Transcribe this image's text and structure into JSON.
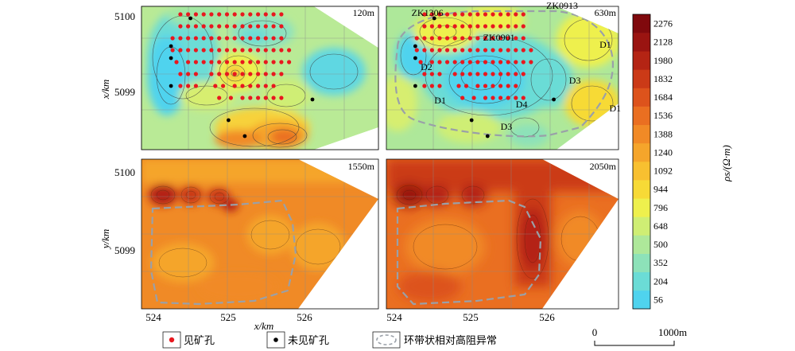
{
  "chart_data": {
    "type": "heatmap",
    "panels": [
      {
        "depth_label": "120m",
        "holes_ore": [
          [
            524.35,
            5100.05
          ],
          [
            524.45,
            5100.05
          ],
          [
            524.55,
            5100.05
          ],
          [
            524.65,
            5100.05
          ],
          [
            524.75,
            5100.05
          ],
          [
            524.85,
            5100.05
          ],
          [
            524.95,
            5100.05
          ],
          [
            525.05,
            5100.05
          ],
          [
            525.15,
            5100.05
          ],
          [
            525.25,
            5100.05
          ],
          [
            525.35,
            5100.05
          ],
          [
            525.45,
            5100.05
          ],
          [
            525.55,
            5100.05
          ],
          [
            525.65,
            5100.05
          ],
          [
            524.35,
            5099.9
          ],
          [
            524.45,
            5099.9
          ],
          [
            524.55,
            5099.9
          ],
          [
            524.65,
            5099.9
          ],
          [
            524.75,
            5099.9
          ],
          [
            524.85,
            5099.9
          ],
          [
            524.95,
            5099.9
          ],
          [
            525.05,
            5099.9
          ],
          [
            525.15,
            5099.9
          ],
          [
            525.25,
            5099.9
          ],
          [
            525.35,
            5099.9
          ],
          [
            525.45,
            5099.9
          ],
          [
            525.55,
            5099.9
          ],
          [
            525.65,
            5099.9
          ],
          [
            524.25,
            5099.75
          ],
          [
            524.35,
            5099.75
          ],
          [
            524.45,
            5099.75
          ],
          [
            524.55,
            5099.75
          ],
          [
            524.65,
            5099.75
          ],
          [
            524.75,
            5099.75
          ],
          [
            524.85,
            5099.75
          ],
          [
            524.95,
            5099.75
          ],
          [
            525.05,
            5099.75
          ],
          [
            525.15,
            5099.75
          ],
          [
            525.25,
            5099.75
          ],
          [
            525.35,
            5099.75
          ],
          [
            525.45,
            5099.75
          ],
          [
            525.55,
            5099.75
          ],
          [
            525.65,
            5099.75
          ],
          [
            524.25,
            5099.6
          ],
          [
            524.35,
            5099.6
          ],
          [
            524.45,
            5099.6
          ],
          [
            524.55,
            5099.6
          ],
          [
            524.65,
            5099.6
          ],
          [
            524.75,
            5099.6
          ],
          [
            524.85,
            5099.6
          ],
          [
            524.95,
            5099.6
          ],
          [
            525.05,
            5099.6
          ],
          [
            525.15,
            5099.6
          ],
          [
            525.25,
            5099.6
          ],
          [
            525.35,
            5099.6
          ],
          [
            525.45,
            5099.6
          ],
          [
            525.55,
            5099.6
          ],
          [
            525.65,
            5099.6
          ],
          [
            525.75,
            5099.6
          ],
          [
            524.3,
            5099.45
          ],
          [
            524.45,
            5099.45
          ],
          [
            524.55,
            5099.45
          ],
          [
            524.65,
            5099.45
          ],
          [
            524.75,
            5099.45
          ],
          [
            524.85,
            5099.45
          ],
          [
            524.95,
            5099.45
          ],
          [
            525.05,
            5099.45
          ],
          [
            525.15,
            5099.45
          ],
          [
            525.25,
            5099.45
          ],
          [
            525.35,
            5099.45
          ],
          [
            525.45,
            5099.45
          ],
          [
            525.55,
            5099.45
          ],
          [
            525.65,
            5099.45
          ],
          [
            525.75,
            5099.45
          ],
          [
            524.35,
            5099.3
          ],
          [
            524.45,
            5099.3
          ],
          [
            524.55,
            5099.3
          ],
          [
            524.75,
            5099.3
          ],
          [
            524.85,
            5099.3
          ],
          [
            524.95,
            5099.3
          ],
          [
            525.05,
            5099.3
          ],
          [
            525.15,
            5099.3
          ],
          [
            525.25,
            5099.3
          ],
          [
            525.35,
            5099.3
          ],
          [
            525.45,
            5099.3
          ],
          [
            525.55,
            5099.3
          ],
          [
            525.65,
            5099.3
          ],
          [
            524.35,
            5099.15
          ],
          [
            524.45,
            5099.15
          ],
          [
            524.55,
            5099.15
          ],
          [
            524.8,
            5099.15
          ],
          [
            524.9,
            5099.15
          ],
          [
            525.05,
            5099.15
          ],
          [
            525.15,
            5099.15
          ],
          [
            525.25,
            5099.15
          ],
          [
            525.35,
            5099.15
          ],
          [
            525.45,
            5099.15
          ],
          [
            525.55,
            5099.15
          ],
          [
            524.85,
            5099.0
          ],
          [
            525.0,
            5099.0
          ],
          [
            525.15,
            5099.0
          ],
          [
            525.25,
            5099.0
          ],
          [
            525.35,
            5099.0
          ],
          [
            525.45,
            5099.0
          ],
          [
            525.55,
            5099.0
          ],
          [
            525.65,
            5099.0
          ]
        ],
        "holes_barren": [
          [
            524.48,
            5100.0
          ],
          [
            524.23,
            5099.65
          ],
          [
            524.23,
            5099.5
          ],
          [
            524.23,
            5099.15
          ],
          [
            524.97,
            5098.72
          ],
          [
            525.18,
            5098.52
          ],
          [
            526.05,
            5098.98
          ]
        ],
        "annotations": []
      },
      {
        "depth_label": "630m",
        "holes_ore": [
          [
            524.35,
            5100.05
          ],
          [
            524.45,
            5100.05
          ],
          [
            524.55,
            5100.05
          ],
          [
            524.65,
            5100.05
          ],
          [
            524.75,
            5100.05
          ],
          [
            524.85,
            5100.05
          ],
          [
            524.95,
            5100.05
          ],
          [
            525.05,
            5100.05
          ],
          [
            525.15,
            5100.05
          ],
          [
            525.25,
            5100.05
          ],
          [
            525.35,
            5100.05
          ],
          [
            525.45,
            5100.05
          ],
          [
            525.55,
            5100.05
          ],
          [
            525.65,
            5100.05
          ],
          [
            524.35,
            5099.9
          ],
          [
            524.45,
            5099.9
          ],
          [
            524.55,
            5099.9
          ],
          [
            524.65,
            5099.9
          ],
          [
            524.75,
            5099.9
          ],
          [
            524.85,
            5099.9
          ],
          [
            524.95,
            5099.9
          ],
          [
            525.05,
            5099.9
          ],
          [
            525.15,
            5099.9
          ],
          [
            525.25,
            5099.9
          ],
          [
            525.35,
            5099.9
          ],
          [
            525.45,
            5099.9
          ],
          [
            525.55,
            5099.9
          ],
          [
            525.65,
            5099.9
          ],
          [
            524.25,
            5099.75
          ],
          [
            524.35,
            5099.75
          ],
          [
            524.45,
            5099.75
          ],
          [
            524.55,
            5099.75
          ],
          [
            524.65,
            5099.75
          ],
          [
            524.75,
            5099.75
          ],
          [
            524.85,
            5099.75
          ],
          [
            524.95,
            5099.75
          ],
          [
            525.05,
            5099.75
          ],
          [
            525.15,
            5099.75
          ],
          [
            525.25,
            5099.75
          ],
          [
            525.35,
            5099.75
          ],
          [
            525.45,
            5099.75
          ],
          [
            525.55,
            5099.75
          ],
          [
            525.65,
            5099.75
          ],
          [
            524.25,
            5099.6
          ],
          [
            524.35,
            5099.6
          ],
          [
            524.45,
            5099.6
          ],
          [
            524.55,
            5099.6
          ],
          [
            524.65,
            5099.6
          ],
          [
            524.75,
            5099.6
          ],
          [
            524.85,
            5099.6
          ],
          [
            524.95,
            5099.6
          ],
          [
            525.05,
            5099.6
          ],
          [
            525.15,
            5099.6
          ],
          [
            525.25,
            5099.6
          ],
          [
            525.35,
            5099.6
          ],
          [
            525.45,
            5099.6
          ],
          [
            525.55,
            5099.6
          ],
          [
            525.65,
            5099.6
          ],
          [
            525.75,
            5099.6
          ],
          [
            524.3,
            5099.45
          ],
          [
            524.45,
            5099.45
          ],
          [
            524.55,
            5099.45
          ],
          [
            524.65,
            5099.45
          ],
          [
            524.75,
            5099.45
          ],
          [
            524.85,
            5099.45
          ],
          [
            524.95,
            5099.45
          ],
          [
            525.05,
            5099.45
          ],
          [
            525.15,
            5099.45
          ],
          [
            525.25,
            5099.45
          ],
          [
            525.35,
            5099.45
          ],
          [
            525.45,
            5099.45
          ],
          [
            525.55,
            5099.45
          ],
          [
            525.65,
            5099.45
          ],
          [
            525.75,
            5099.45
          ],
          [
            524.35,
            5099.3
          ],
          [
            524.45,
            5099.3
          ],
          [
            524.55,
            5099.3
          ],
          [
            524.75,
            5099.3
          ],
          [
            524.85,
            5099.3
          ],
          [
            524.95,
            5099.3
          ],
          [
            525.05,
            5099.3
          ],
          [
            525.15,
            5099.3
          ],
          [
            525.25,
            5099.3
          ],
          [
            525.35,
            5099.3
          ],
          [
            525.45,
            5099.3
          ],
          [
            525.55,
            5099.3
          ],
          [
            525.65,
            5099.3
          ],
          [
            524.35,
            5099.15
          ],
          [
            524.45,
            5099.15
          ],
          [
            524.55,
            5099.15
          ],
          [
            524.8,
            5099.15
          ],
          [
            524.9,
            5099.15
          ],
          [
            525.05,
            5099.15
          ],
          [
            525.15,
            5099.15
          ],
          [
            525.25,
            5099.15
          ],
          [
            525.35,
            5099.15
          ],
          [
            525.45,
            5099.15
          ],
          [
            525.55,
            5099.15
          ],
          [
            524.85,
            5099.0
          ],
          [
            525.0,
            5099.0
          ],
          [
            525.15,
            5099.0
          ],
          [
            525.25,
            5099.0
          ],
          [
            525.35,
            5099.0
          ],
          [
            525.45,
            5099.0
          ],
          [
            525.55,
            5099.0
          ],
          [
            525.65,
            5099.0
          ]
        ],
        "holes_barren": [
          [
            524.48,
            5100.0
          ],
          [
            524.23,
            5099.65
          ],
          [
            524.23,
            5099.5
          ],
          [
            524.23,
            5099.15
          ],
          [
            524.97,
            5098.72
          ],
          [
            525.18,
            5098.52
          ],
          [
            526.05,
            5098.98
          ]
        ],
        "annotations": [
          {
            "text": "ZK1306",
            "x": 524.18,
            "y": 5100.03
          },
          {
            "text": "ZK0913",
            "x": 525.95,
            "y": 5100.12
          },
          {
            "text": "ZK0901",
            "x": 525.12,
            "y": 5099.72
          },
          {
            "text": "D1",
            "x": 526.65,
            "y": 5099.63
          },
          {
            "text": "D2",
            "x": 524.3,
            "y": 5099.35
          },
          {
            "text": "D3",
            "x": 526.25,
            "y": 5099.18
          },
          {
            "text": "D1",
            "x": 524.48,
            "y": 5098.93
          },
          {
            "text": "D4",
            "x": 525.55,
            "y": 5098.88
          },
          {
            "text": "D1",
            "x": 526.78,
            "y": 5098.83
          },
          {
            "text": "D3",
            "x": 525.35,
            "y": 5098.6
          }
        ]
      },
      {
        "depth_label": "1550m",
        "holes_ore": [],
        "holes_barren": [],
        "annotations": []
      },
      {
        "depth_label": "2050m",
        "holes_ore": [],
        "holes_barren": [],
        "annotations": []
      }
    ],
    "top_ylabel": "x/km",
    "bottom_ylabel": "y/km",
    "xlabel": "x/km",
    "ytick_labels": [
      "5100",
      "5099"
    ],
    "xtick_labels": [
      "524",
      "525",
      "526"
    ],
    "colorbar": {
      "label": "ρs/(Ω·m)",
      "levels": [
        56,
        204,
        352,
        500,
        648,
        796,
        944,
        1092,
        1240,
        1388,
        1536,
        1684,
        1832,
        1980,
        2128,
        2276
      ],
      "colors": [
        "#4fd3ee",
        "#6bdcd6",
        "#8de2b9",
        "#aee89a",
        "#cfee74",
        "#eef04d",
        "#f7da36",
        "#f8c030",
        "#f5a52b",
        "#f18a26",
        "#ea6f21",
        "#dd531c",
        "#cb3a17",
        "#b42414",
        "#9a1411",
        "#80090d"
      ]
    }
  },
  "legend": {
    "ore_hole": "见矿孔",
    "barren_hole": "未见矿孔",
    "ring_anomaly": "环带状相对高阻异常"
  },
  "scale_bar": {
    "start": "0",
    "end": "1000m"
  }
}
